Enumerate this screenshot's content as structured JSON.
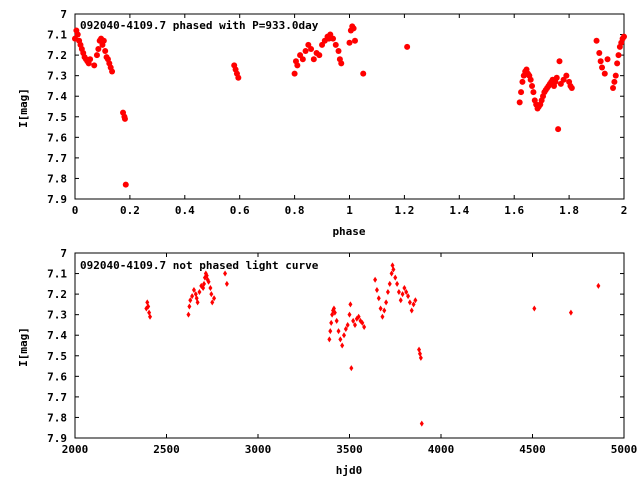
{
  "colors": {
    "points": "#ff0000",
    "axes": "#000000",
    "background": "#ffffff"
  },
  "chart_data": [
    {
      "type": "scatter",
      "title": "092040-4109.7 phased with P=933.0day",
      "xlabel": "phase",
      "ylabel": "I[mag]",
      "xlim": [
        0,
        2
      ],
      "ylim": [
        7,
        7.9
      ],
      "y_inverted": true,
      "grid": false,
      "x_tick_labels": [
        "0",
        "0.2",
        "0.4",
        "0.6",
        "0.8",
        "1",
        "1.2",
        "1.4",
        "1.6",
        "1.8",
        "2"
      ],
      "y_tick_labels": [
        "7",
        "7.1",
        "7.2",
        "7.3",
        "7.4",
        "7.5",
        "7.6",
        "7.7",
        "7.8",
        "7.9"
      ],
      "series": [
        {
          "marker": "filled-circle",
          "x": [
            0.0,
            0.005,
            0.01,
            0.015,
            0.02,
            0.025,
            0.03,
            0.035,
            0.04,
            0.045,
            0.05,
            0.055,
            0.07,
            0.08,
            0.085,
            0.09,
            0.095,
            0.1,
            0.105,
            0.11,
            0.115,
            0.12,
            0.125,
            0.13,
            0.135,
            0.175,
            0.18,
            0.182,
            0.185,
            0.58,
            0.585,
            0.59,
            0.595,
            0.8,
            0.805,
            0.81,
            0.82,
            0.83,
            0.84,
            0.85,
            0.86,
            0.87,
            0.88,
            0.89,
            0.9,
            0.91,
            0.92,
            0.925,
            0.93,
            0.94,
            0.95,
            0.96,
            0.965,
            0.97,
            1.0,
            1.005,
            1.01,
            1.015,
            1.02,
            1.05,
            1.21,
            1.62,
            1.625,
            1.63,
            1.635,
            1.64,
            1.645,
            1.65,
            1.655,
            1.66,
            1.665,
            1.67,
            1.675,
            1.68,
            1.685,
            1.69,
            1.695,
            1.7,
            1.705,
            1.71,
            1.715,
            1.72,
            1.725,
            1.73,
            1.735,
            1.74,
            1.745,
            1.75,
            1.755,
            1.76,
            1.765,
            1.77,
            1.78,
            1.79,
            1.8,
            1.805,
            1.81,
            1.9,
            1.91,
            1.915,
            1.92,
            1.93,
            1.94,
            1.96,
            1.965,
            1.97,
            1.975,
            1.98,
            1.985,
            1.99,
            1.995,
            2.0
          ],
          "y": [
            7.12,
            7.08,
            7.1,
            7.13,
            7.15,
            7.17,
            7.19,
            7.21,
            7.22,
            7.23,
            7.24,
            7.22,
            7.25,
            7.2,
            7.17,
            7.13,
            7.12,
            7.15,
            7.13,
            7.18,
            7.21,
            7.22,
            7.24,
            7.26,
            7.28,
            7.48,
            7.5,
            7.51,
            7.83,
            7.25,
            7.27,
            7.29,
            7.31,
            7.29,
            7.23,
            7.25,
            7.2,
            7.22,
            7.18,
            7.15,
            7.17,
            7.22,
            7.19,
            7.2,
            7.15,
            7.13,
            7.11,
            7.12,
            7.1,
            7.12,
            7.15,
            7.18,
            7.22,
            7.24,
            7.14,
            7.08,
            7.06,
            7.07,
            7.13,
            7.29,
            7.16,
            7.43,
            7.38,
            7.33,
            7.3,
            7.28,
            7.27,
            7.29,
            7.3,
            7.32,
            7.35,
            7.38,
            7.42,
            7.44,
            7.46,
            7.45,
            7.44,
            7.42,
            7.4,
            7.38,
            7.37,
            7.36,
            7.35,
            7.34,
            7.33,
            7.32,
            7.35,
            7.33,
            7.31,
            7.56,
            7.23,
            7.34,
            7.32,
            7.3,
            7.33,
            7.35,
            7.36,
            7.13,
            7.19,
            7.23,
            7.26,
            7.29,
            7.22,
            7.36,
            7.33,
            7.3,
            7.24,
            7.2,
            7.16,
            7.14,
            7.12,
            7.11
          ]
        }
      ]
    },
    {
      "type": "scatter",
      "title": "092040-4109.7 not phased light curve",
      "xlabel": "hjd0",
      "ylabel": "I[mag]",
      "xlim": [
        2000,
        5000
      ],
      "ylim": [
        7,
        7.9
      ],
      "y_inverted": true,
      "grid": false,
      "x_tick_labels": [
        "2000",
        "2500",
        "3000",
        "3500",
        "4000",
        "4500",
        "5000"
      ],
      "y_tick_labels": [
        "7",
        "7.1",
        "7.2",
        "7.3",
        "7.4",
        "7.5",
        "7.6",
        "7.7",
        "7.8",
        "7.9"
      ],
      "series": [
        {
          "marker": "diamond",
          "x": [
            2390,
            2395,
            2400,
            2405,
            2410,
            2620,
            2625,
            2630,
            2640,
            2650,
            2660,
            2665,
            2670,
            2680,
            2690,
            2700,
            2705,
            2710,
            2715,
            2720,
            2725,
            2730,
            2740,
            2745,
            2750,
            2760,
            2820,
            2830,
            3390,
            3395,
            3400,
            3405,
            3410,
            3415,
            3420,
            3430,
            3440,
            3450,
            3460,
            3470,
            3480,
            3490,
            3500,
            3505,
            3510,
            3520,
            3530,
            3540,
            3550,
            3560,
            3570,
            3580,
            3640,
            3650,
            3660,
            3670,
            3680,
            3690,
            3700,
            3710,
            3720,
            3730,
            3735,
            3740,
            3750,
            3760,
            3770,
            3780,
            3790,
            3800,
            3810,
            3820,
            3830,
            3840,
            3850,
            3860,
            3880,
            3885,
            3890,
            3895,
            4510,
            4710,
            4860
          ],
          "y": [
            7.27,
            7.24,
            7.26,
            7.29,
            7.31,
            7.3,
            7.26,
            7.23,
            7.21,
            7.18,
            7.2,
            7.22,
            7.24,
            7.19,
            7.16,
            7.17,
            7.15,
            7.12,
            7.1,
            7.11,
            7.13,
            7.14,
            7.17,
            7.2,
            7.24,
            7.22,
            7.1,
            7.15,
            7.42,
            7.38,
            7.34,
            7.3,
            7.28,
            7.27,
            7.29,
            7.33,
            7.38,
            7.42,
            7.45,
            7.4,
            7.37,
            7.35,
            7.3,
            7.25,
            7.56,
            7.33,
            7.35,
            7.32,
            7.31,
            7.33,
            7.34,
            7.36,
            7.13,
            7.18,
            7.22,
            7.27,
            7.31,
            7.28,
            7.24,
            7.19,
            7.15,
            7.1,
            7.06,
            7.08,
            7.12,
            7.15,
            7.19,
            7.23,
            7.2,
            7.17,
            7.19,
            7.21,
            7.24,
            7.28,
            7.25,
            7.23,
            7.47,
            7.49,
            7.51,
            7.83,
            7.27,
            7.29,
            7.16
          ]
        }
      ]
    }
  ]
}
